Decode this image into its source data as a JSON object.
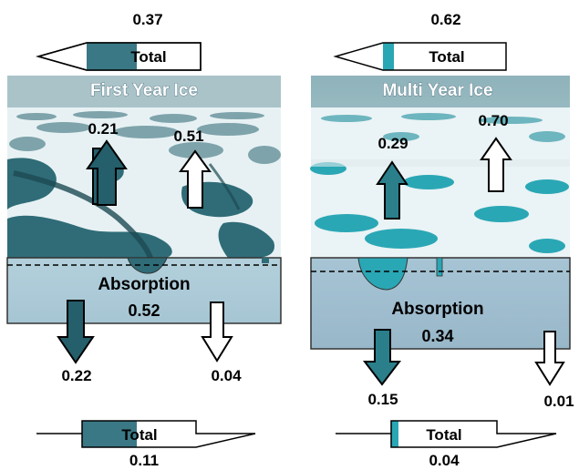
{
  "colors": {
    "dark_arrow": "#245f6b",
    "white_arrow": "#ffffff",
    "pond_fyi": "#2f6f7a",
    "pond_myi": "#2aa7b5",
    "ice_block": "#9dbfd0",
    "sky": "#9ec0c6",
    "snow": "#e8f3f5"
  },
  "panels": [
    {
      "title": "First Year Ice",
      "top_total": {
        "value": "0.37",
        "label": "Total"
      },
      "up_dark": "0.21",
      "up_white": "0.51",
      "absorption": {
        "label": "Absorption",
        "value": "0.52"
      },
      "down_dark": "0.22",
      "down_white": "0.04",
      "bottom_total": {
        "value": "0.11",
        "label": "Total"
      }
    },
    {
      "title": "Multi Year Ice",
      "top_total": {
        "value": "0.62",
        "label": "Total"
      },
      "up_dark": "0.29",
      "up_white": "0.70",
      "absorption": {
        "label": "Absorption",
        "value": "0.34"
      },
      "down_dark": "0.15",
      "down_white": "0.01",
      "bottom_total": {
        "value": "0.04",
        "label": "Total"
      }
    }
  ]
}
